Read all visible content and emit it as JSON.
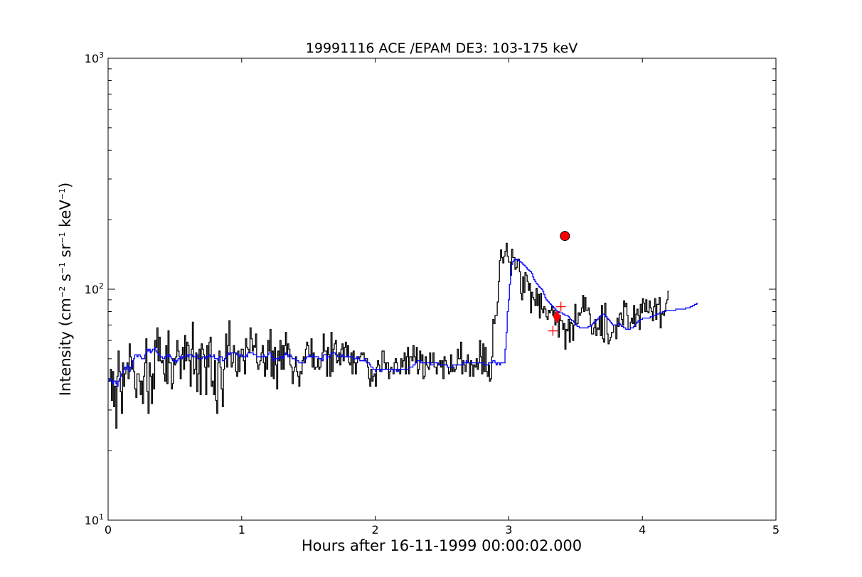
{
  "chart_data": {
    "type": "line",
    "title": "19991116 ACE /EPAM DE3: 103-175 keV",
    "xlabel": "Hours after 16-11-1999 00:00:02.000",
    "ylabel": {
      "parts": [
        "Intensity (cm",
        "−2",
        " s",
        "−1",
        " sr",
        "−1",
        " keV",
        "−1",
        ")"
      ]
    },
    "xlim": [
      0,
      5
    ],
    "ylim": [
      10,
      1000
    ],
    "yscale": "log",
    "xticks": [
      0,
      1,
      2,
      3,
      4,
      5
    ],
    "xtick_labels": [
      "0",
      "1",
      "2",
      "3",
      "4",
      "5"
    ],
    "yticks": [
      {
        "value": 10,
        "base": "10",
        "exp": "1"
      },
      {
        "value": 100,
        "base": "10",
        "exp": "2"
      },
      {
        "value": 1000,
        "base": "10",
        "exp": "3"
      }
    ],
    "grid": false,
    "legend": null,
    "series": [
      {
        "style": "steps",
        "color": "#000000",
        "x_start": 0.0,
        "x_step": 0.0083,
        "values": [
          41,
          40,
          45,
          33,
          44,
          31,
          38,
          25,
          42,
          54,
          44,
          36,
          29,
          48,
          38,
          43,
          46,
          48,
          41,
          58,
          51,
          45,
          49,
          44,
          37,
          34,
          43,
          43,
          40,
          35,
          40,
          32,
          42,
          48,
          61,
          36,
          29,
          48,
          42,
          32,
          43,
          37,
          60,
          56,
          68,
          49,
          62,
          49,
          48,
          49,
          43,
          40,
          57,
          39,
          66,
          48,
          48,
          37,
          39,
          50,
          47,
          51,
          60,
          54,
          51,
          41,
          52,
          56,
          45,
          63,
          49,
          59,
          57,
          49,
          38,
          55,
          72,
          43,
          45,
          53,
          36,
          43,
          55,
          35,
          58,
          55,
          52,
          46,
          35,
          57,
          46,
          59,
          62,
          38,
          40,
          35,
          49,
          33,
          29,
          48,
          54,
          46,
          37,
          31,
          45,
          50,
          64,
          46,
          57,
          73,
          53,
          46,
          48,
          57,
          53,
          44,
          42,
          54,
          44,
          51,
          55,
          55,
          49,
          43,
          61,
          56,
          55,
          53,
          68,
          61,
          54,
          57,
          56,
          64,
          48,
          45,
          47,
          49,
          53,
          57,
          48,
          42,
          51,
          45,
          60,
          54,
          67,
          42,
          54,
          41,
          56,
          47,
          37,
          54,
          49,
          60,
          45,
          57,
          45,
          57,
          65,
          52,
          58,
          55,
          47,
          46,
          39,
          44,
          46,
          51,
          44,
          42,
          38,
          44,
          43,
          49,
          51,
          48,
          55,
          59,
          57,
          52,
          51,
          61,
          46,
          53,
          45,
          46,
          46,
          50,
          45,
          46,
          50,
          53,
          64,
          54,
          54,
          42,
          56,
          52,
          42,
          65,
          44,
          55,
          58,
          60,
          48,
          49,
          53,
          47,
          55,
          58,
          49,
          56,
          59,
          51,
          57,
          48,
          47,
          53,
          43,
          54,
          48,
          43,
          48,
          51,
          50,
          51,
          53,
          52,
          53,
          49,
          50,
          50,
          46,
          41,
          38,
          45,
          40,
          42,
          43,
          38,
          46,
          49,
          47,
          44,
          45,
          54,
          54,
          48,
          45,
          48,
          48,
          41,
          44,
          46,
          45,
          43,
          48,
          50,
          48,
          44,
          45,
          43,
          50,
          46,
          49,
          53,
          43,
          51,
          56,
          43,
          51,
          51,
          49,
          57,
          51,
          48,
          56,
          43,
          45,
          54,
          49,
          52,
          41,
          42,
          51,
          47,
          46,
          45,
          53,
          48,
          48,
          53,
          46,
          46,
          43,
          48,
          47,
          49,
          46,
          49,
          41,
          51,
          49,
          47,
          46,
          43,
          44,
          52,
          44,
          46,
          44,
          45,
          47,
          55,
          50,
          50,
          59,
          43,
          49,
          47,
          44,
          48,
          52,
          48,
          42,
          49,
          47,
          42,
          47,
          46,
          50,
          45,
          48,
          60,
          51,
          43,
          58,
          44,
          56,
          44,
          42,
          47,
          40,
          41,
          51,
          74,
          71,
          77,
          77,
          88,
          108,
          133,
          148,
          137,
          130,
          139,
          146,
          158,
          139,
          131,
          131,
          115,
          149,
          137,
          137,
          122,
          124,
          133,
          135,
          119,
          96,
          90,
          113,
          97,
          118,
          115,
          108,
          99,
          106,
          79,
          97,
          92,
          90,
          85,
          101,
          85,
          95,
          75,
          96,
          82,
          79,
          84,
          82,
          76,
          74,
          81,
          79,
          81,
          84,
          77,
          81,
          70,
          72,
          80,
          62,
          77,
          73,
          73,
          67,
          71,
          55,
          67,
          66,
          74,
          59,
          72,
          71,
          60,
          70,
          86,
          70,
          71,
          79,
          77,
          79,
          83,
          94,
          80,
          92,
          81,
          81,
          83,
          78,
          70,
          64,
          64,
          68,
          74,
          63,
          68,
          67,
          76,
          63,
          85,
          61,
          59,
          87,
          76,
          64,
          58,
          60,
          62,
          65,
          65,
          70,
          70,
          61,
          75,
          69,
          78,
          79,
          74,
          70,
          89,
          84,
          87,
          77,
          67,
          67,
          72,
          75,
          71,
          85,
          69,
          78,
          82,
          77,
          67,
          86,
          79,
          91,
          87,
          80,
          90,
          80,
          79,
          89,
          83,
          80,
          73,
          84,
          91,
          74,
          86,
          86,
          92,
          68,
          78,
          79,
          77,
          80,
          87,
          90,
          98
        ]
      },
      {
        "style": "steps",
        "color": "#0000ff",
        "x_start": 0.0,
        "x_step": 0.0083,
        "values": [
          40,
          40,
          41,
          40,
          39,
          40,
          40,
          39,
          38,
          40,
          41,
          42,
          43,
          44,
          45,
          46,
          45,
          47,
          46,
          44,
          46,
          46,
          49,
          50,
          52,
          52,
          51,
          52,
          52,
          51,
          50,
          50,
          50,
          52,
          53,
          55,
          54,
          55,
          53,
          54,
          55,
          55,
          56,
          54,
          53,
          52,
          52,
          51,
          51,
          50,
          50,
          51,
          51,
          52,
          51,
          52,
          51,
          50,
          49,
          49,
          49,
          48,
          49,
          50,
          50,
          51,
          50,
          51,
          51,
          51,
          52,
          52,
          51,
          52,
          52,
          52,
          51,
          51,
          51,
          52,
          52,
          50,
          50,
          50,
          50,
          51,
          51,
          51,
          50,
          51,
          51,
          52,
          51,
          51,
          51,
          52,
          50,
          50,
          50,
          49,
          51,
          51,
          51,
          49,
          49,
          50,
          51,
          52,
          53,
          52,
          53,
          53,
          53,
          53,
          53,
          53,
          52,
          52,
          51,
          52,
          52,
          51,
          51,
          51,
          52,
          51,
          53,
          53,
          53,
          53,
          53,
          52,
          52,
          52,
          51,
          51,
          51,
          51,
          51,
          51,
          52,
          51,
          51,
          51,
          52,
          53,
          53,
          51,
          51,
          49,
          50,
          50,
          50,
          50,
          50,
          51,
          51,
          50,
          51,
          52,
          53,
          52,
          51,
          52,
          52,
          51,
          50,
          50,
          50,
          50,
          49,
          49,
          48,
          48,
          48,
          48,
          48,
          50,
          50,
          51,
          51,
          52,
          51,
          51,
          51,
          52,
          51,
          51,
          51,
          51,
          50,
          50,
          50,
          49,
          52,
          52,
          52,
          50,
          51,
          51,
          51,
          53,
          53,
          53,
          53,
          52,
          52,
          51,
          51,
          51,
          51,
          52,
          51,
          51,
          51,
          51,
          52,
          51,
          51,
          51,
          51,
          50,
          50,
          50,
          51,
          50,
          50,
          49,
          49,
          49,
          49,
          50,
          49,
          48,
          48,
          48,
          47,
          46,
          46,
          45,
          45,
          44,
          45,
          45,
          45,
          45,
          44,
          45,
          45,
          45,
          45,
          45,
          45,
          45,
          45,
          45,
          45,
          44,
          45,
          45,
          44,
          44,
          45,
          45,
          45,
          45,
          45,
          45,
          45,
          45,
          45,
          46,
          46,
          46,
          46,
          47,
          47,
          48,
          48,
          49,
          49,
          49,
          48,
          48,
          48,
          48,
          48,
          48,
          48,
          48,
          48,
          47,
          47,
          47,
          48,
          48,
          48,
          48,
          47,
          47,
          47,
          47,
          47,
          47,
          47,
          47,
          46,
          46,
          46,
          46,
          46,
          47,
          47,
          47,
          47,
          47,
          47,
          47,
          47,
          47,
          48,
          48,
          48,
          49,
          48,
          48,
          48,
          48,
          48,
          48,
          48,
          48,
          48,
          48,
          48,
          48,
          48,
          48,
          48,
          47,
          47,
          47,
          47,
          48,
          48,
          48,
          48,
          49,
          49,
          48,
          47,
          48,
          48,
          47,
          48,
          48,
          48,
          48,
          55,
          65,
          80,
          90,
          105,
          118,
          128,
          132,
          134,
          135,
          134,
          135,
          133,
          132,
          131,
          130,
          128,
          127,
          126,
          124,
          122,
          121,
          120,
          119,
          117,
          113,
          110,
          108,
          106,
          105,
          103,
          102,
          101,
          100,
          98,
          95,
          92,
          90,
          89,
          88,
          87,
          86,
          85,
          84,
          83,
          82,
          81,
          80,
          80,
          79,
          79,
          79,
          78,
          78,
          77,
          77,
          77,
          76,
          75,
          74,
          73,
          73,
          72,
          71,
          70,
          69,
          69,
          68,
          68,
          68,
          68,
          68,
          68,
          68,
          68,
          69,
          69,
          70,
          70,
          71,
          72,
          72,
          73,
          74,
          75,
          76,
          77,
          77,
          78,
          78,
          77,
          76,
          75,
          74,
          73,
          72,
          71,
          70,
          70,
          70,
          70,
          70,
          71,
          71,
          70,
          69,
          69,
          68,
          68,
          67,
          67,
          67,
          67,
          68,
          68,
          68,
          69,
          70,
          71,
          72,
          73,
          73,
          74,
          74,
          75,
          75,
          75,
          75,
          75,
          75,
          75,
          76,
          76,
          76,
          77,
          77,
          78,
          78,
          78,
          79,
          79,
          79,
          80,
          80,
          81,
          81,
          81,
          81,
          81,
          81,
          81,
          81,
          81,
          81,
          82,
          82,
          82,
          82,
          82,
          82,
          82,
          82,
          82,
          83,
          83,
          83,
          83,
          84,
          84,
          85,
          85,
          86,
          86,
          87
        ]
      }
    ],
    "markers": [
      {
        "shape": "circle",
        "x": 3.42,
        "y": 170,
        "color": "#ff0000"
      },
      {
        "shape": "diamond",
        "x": 3.36,
        "y": 76,
        "color": "#ff0000"
      },
      {
        "shape": "plus",
        "x": 3.39,
        "y": 84,
        "color": "#ff0000"
      },
      {
        "shape": "plus",
        "x": 3.33,
        "y": 66,
        "color": "#ff0000"
      }
    ]
  }
}
